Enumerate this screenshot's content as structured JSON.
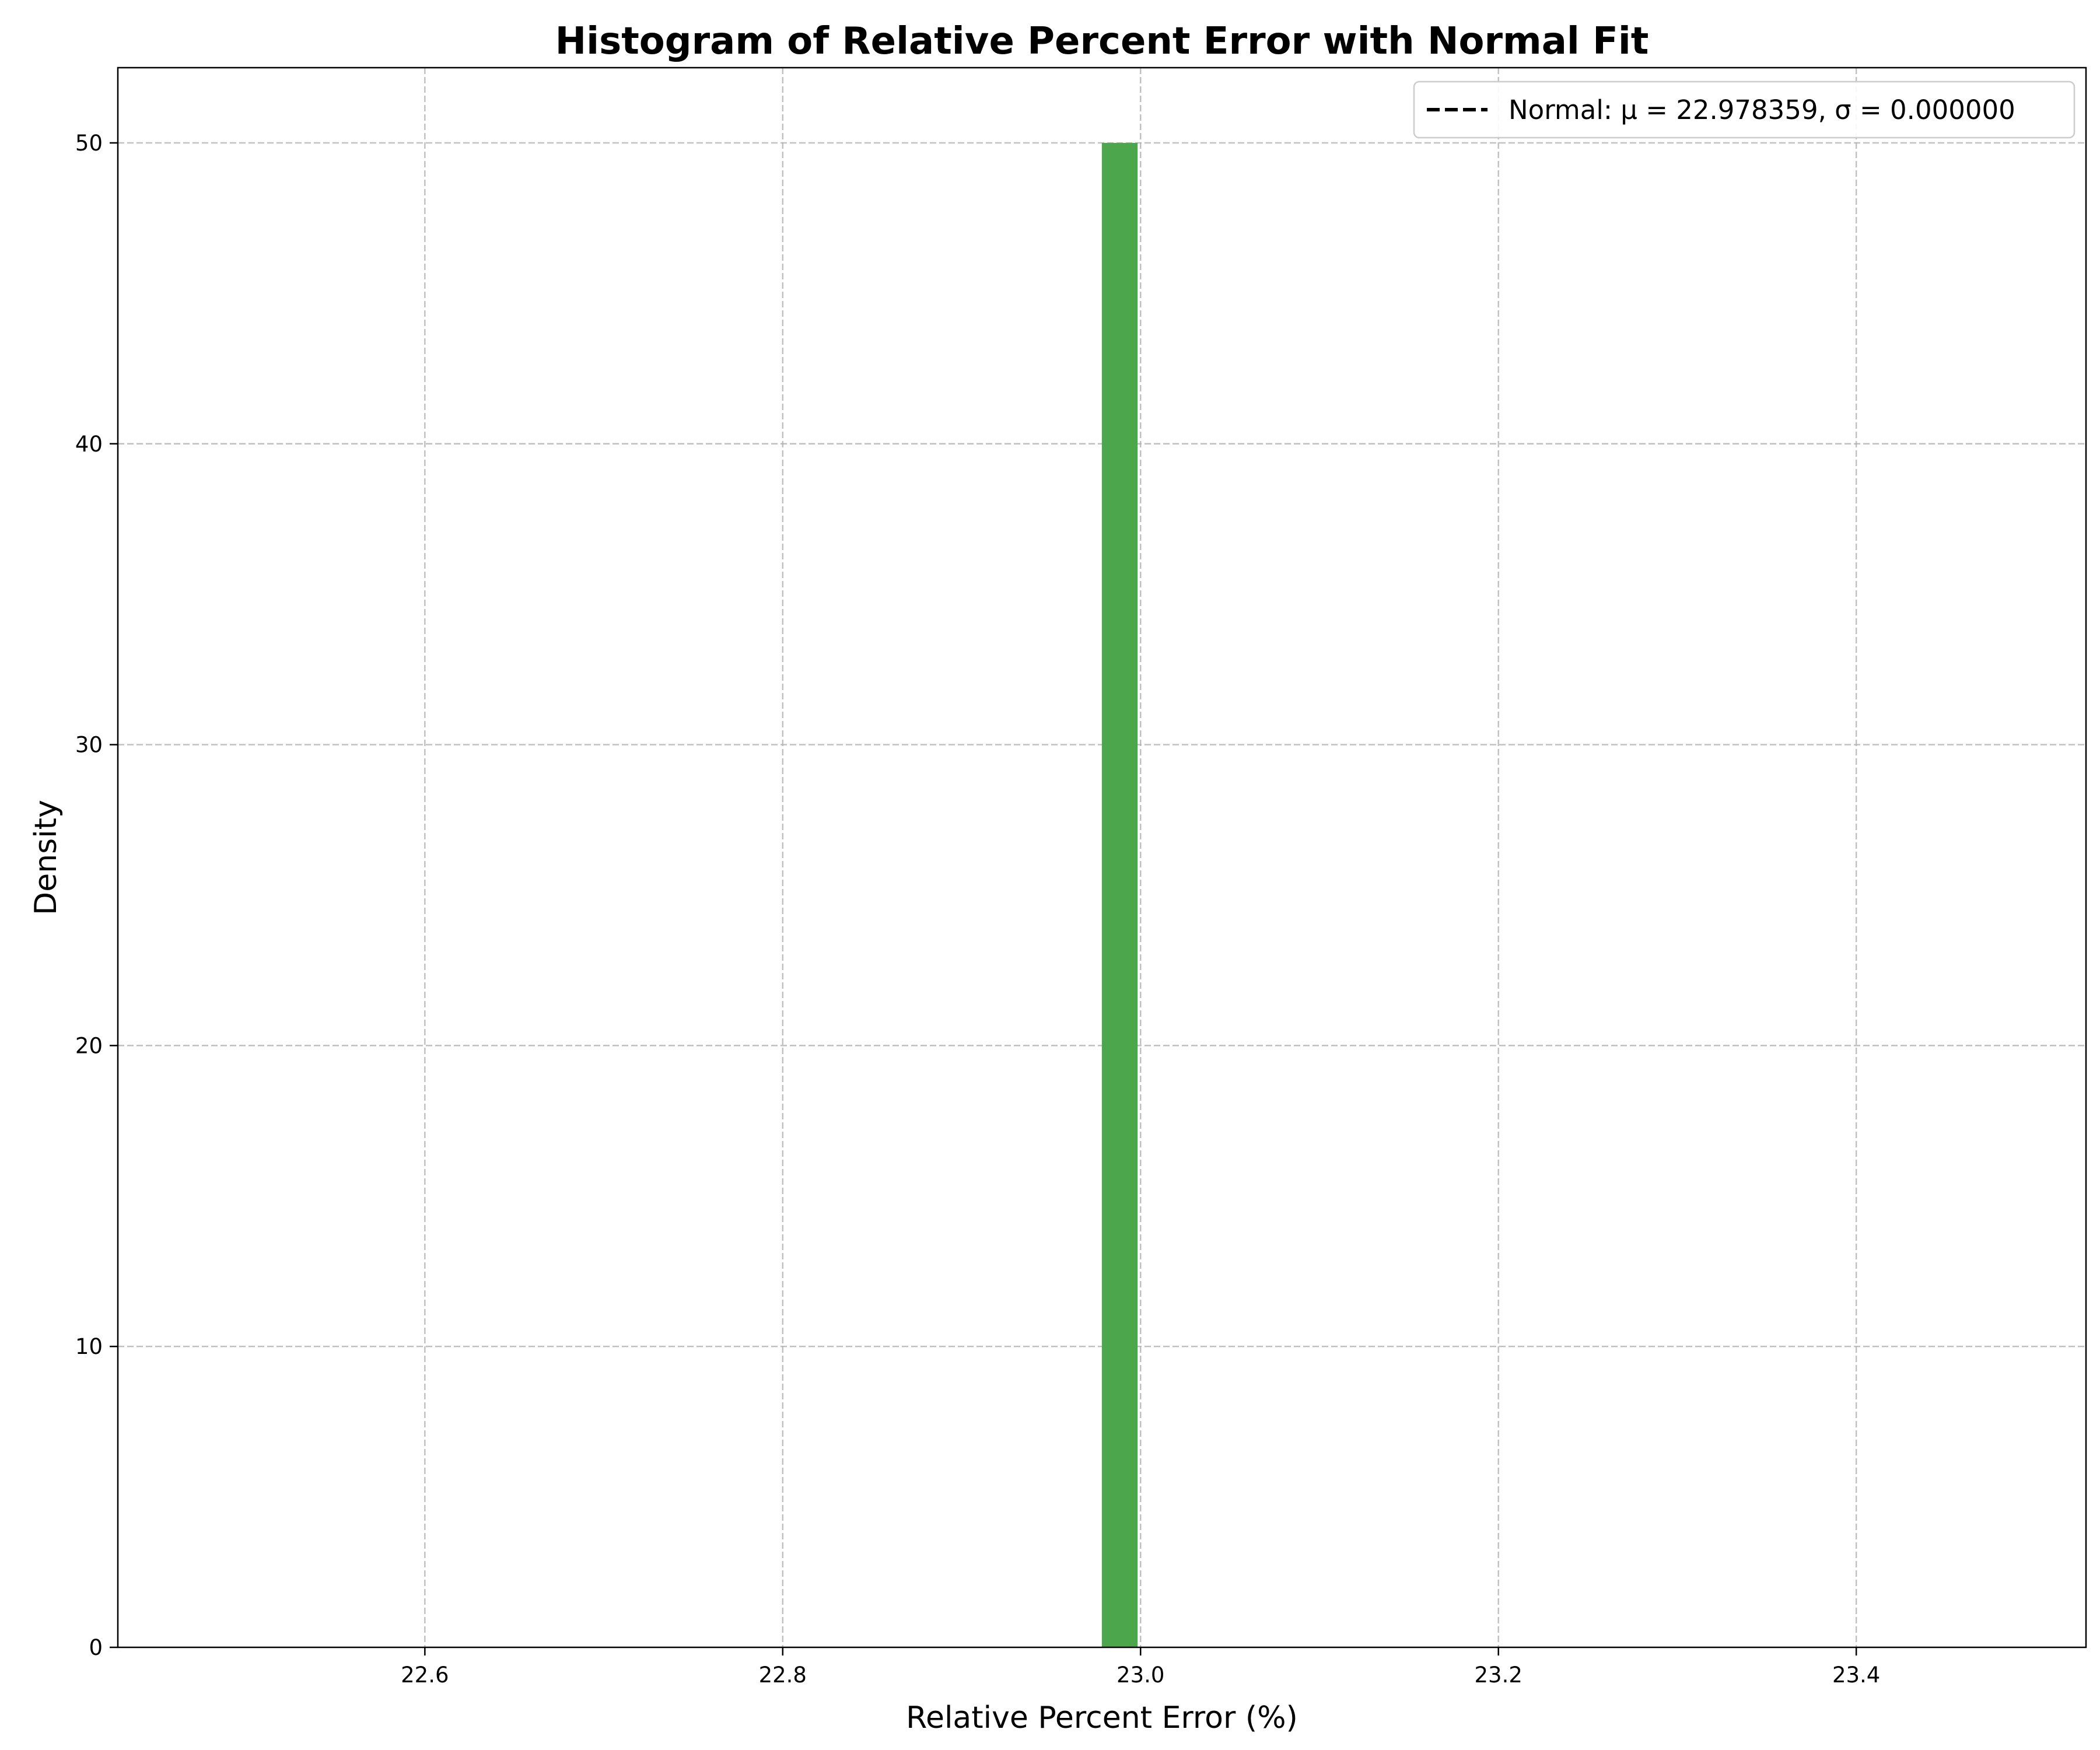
{
  "chart_data": {
    "type": "bar",
    "title": "Histogram of Relative Percent Error with Normal Fit",
    "xlabel": "Relative Percent Error (%)",
    "ylabel": "Density",
    "xlim": [
      22.4284,
      23.5284
    ],
    "ylim": [
      0,
      52.5
    ],
    "xticks": [
      22.6,
      22.8,
      23.0,
      23.2,
      23.4
    ],
    "xtick_labels": [
      "22.6",
      "22.8",
      "23.0",
      "23.2",
      "23.4"
    ],
    "yticks": [
      0,
      10,
      20,
      30,
      40,
      50
    ],
    "ytick_labels": [
      "0",
      "10",
      "20",
      "30",
      "40",
      "50"
    ],
    "grid": true,
    "legend_position": "top-right",
    "bars": [
      {
        "x_start": 22.978359,
        "x_end": 22.998359,
        "density": 50
      }
    ],
    "bar_color": "#4ca64c",
    "series": [
      {
        "name": "Normal: μ = 22.978359, σ = 0.000000",
        "mu": 22.978359,
        "sigma": 0.0,
        "style": "dashed",
        "color": "#000000"
      }
    ],
    "legend_entries": [
      "Normal: μ = 22.978359, σ = 0.000000"
    ]
  }
}
